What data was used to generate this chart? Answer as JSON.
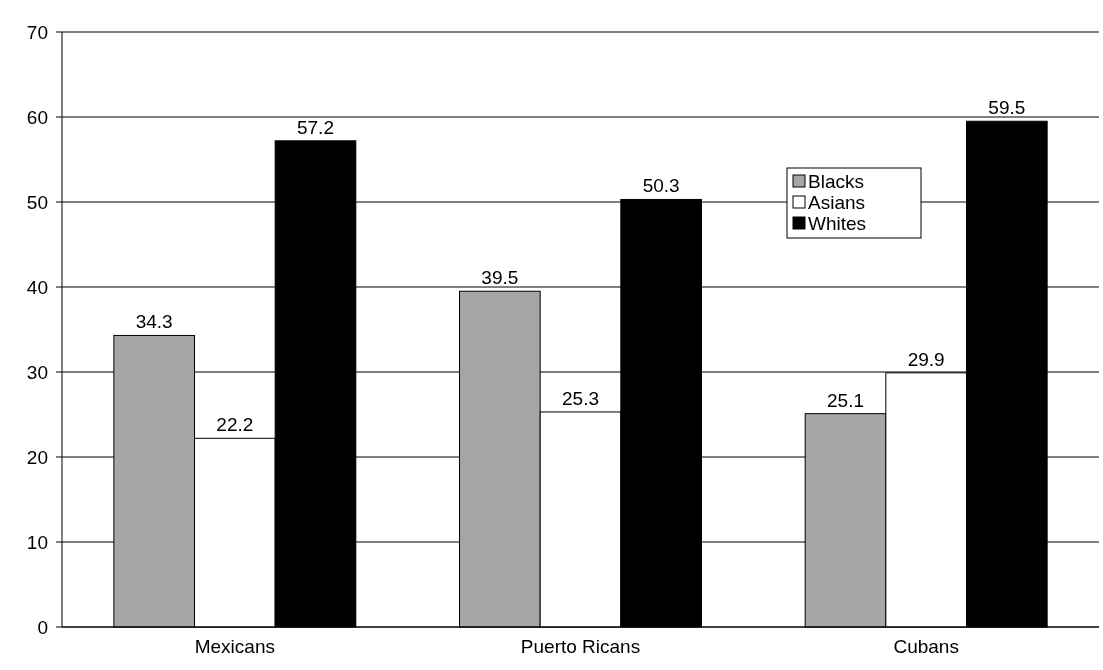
{
  "chart_data": {
    "type": "bar",
    "categories": [
      "Mexicans",
      "Puerto Ricans",
      "Cubans"
    ],
    "series": [
      {
        "name": "Blacks",
        "color": "#a6a6a6",
        "values": [
          34.3,
          39.5,
          25.1
        ]
      },
      {
        "name": "Asians",
        "color": "#ffffff",
        "values": [
          22.2,
          25.3,
          29.9
        ]
      },
      {
        "name": "Whites",
        "color": "#000000",
        "values": [
          57.2,
          50.3,
          59.5
        ]
      }
    ],
    "ylim": [
      0,
      70
    ],
    "yticks": [
      0,
      10,
      20,
      30,
      40,
      50,
      60,
      70
    ],
    "grid": "y",
    "legend": "top right",
    "data_labels": true
  }
}
